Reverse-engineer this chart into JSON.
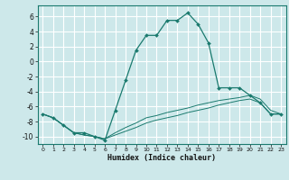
{
  "xlabel": "Humidex (Indice chaleur)",
  "bg_color": "#cde8ea",
  "grid_color": "#ffffff",
  "line_color": "#1a7a6e",
  "xlim": [
    -0.5,
    23.5
  ],
  "ylim": [
    -11,
    7.5
  ],
  "yticks": [
    -10,
    -8,
    -6,
    -4,
    -2,
    0,
    2,
    4,
    6
  ],
  "xticks": [
    0,
    1,
    2,
    3,
    4,
    5,
    6,
    7,
    8,
    9,
    10,
    11,
    12,
    13,
    14,
    15,
    16,
    17,
    18,
    19,
    20,
    21,
    22,
    23
  ],
  "line1_x": [
    0,
    1,
    2,
    3,
    4,
    5,
    6,
    7,
    8,
    9,
    10,
    11,
    12,
    13,
    14,
    15,
    16,
    17,
    18,
    19,
    20,
    21,
    22,
    23
  ],
  "line1_y": [
    -7,
    -7.5,
    -8.5,
    -9.5,
    -9.5,
    -10,
    -10.5,
    -6.5,
    -2.5,
    1.5,
    3.5,
    3.5,
    5.5,
    5.5,
    6.5,
    5,
    2.5,
    -3.5,
    -3.5,
    -3.5,
    -4.5,
    -5.5,
    -7,
    -7
  ],
  "line2_x": [
    0,
    1,
    2,
    3,
    4,
    5,
    6,
    7,
    8,
    9,
    10,
    11,
    12,
    13,
    14,
    15,
    16,
    17,
    18,
    19,
    20,
    21,
    22,
    23
  ],
  "line2_y": [
    -7,
    -7.5,
    -8.5,
    -9.5,
    -9.8,
    -10,
    -10.3,
    -9.5,
    -8.8,
    -8.2,
    -7.5,
    -7.2,
    -6.8,
    -6.5,
    -6.2,
    -5.8,
    -5.5,
    -5.2,
    -5.0,
    -4.8,
    -4.5,
    -5.0,
    -6.5,
    -7
  ],
  "line3_x": [
    0,
    1,
    2,
    3,
    4,
    5,
    6,
    7,
    8,
    9,
    10,
    11,
    12,
    13,
    14,
    15,
    16,
    17,
    18,
    19,
    20,
    21,
    22,
    23
  ],
  "line3_y": [
    -7,
    -7.5,
    -8.5,
    -9.5,
    -9.8,
    -10,
    -10.3,
    -9.8,
    -9.3,
    -8.8,
    -8.2,
    -7.8,
    -7.5,
    -7.2,
    -6.8,
    -6.5,
    -6.2,
    -5.8,
    -5.5,
    -5.2,
    -5.0,
    -5.5,
    -7,
    -7
  ]
}
